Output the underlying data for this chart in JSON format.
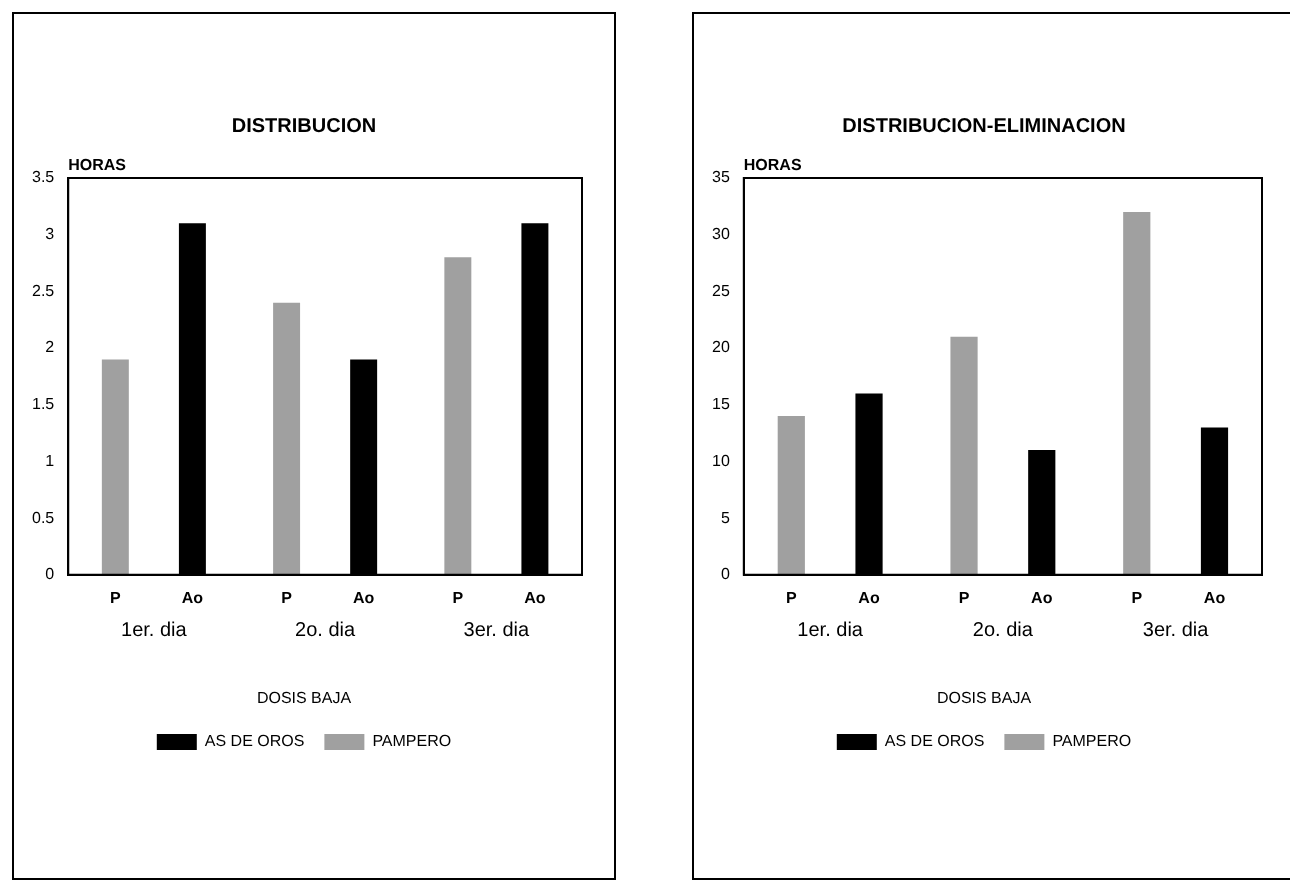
{
  "chart_data": [
    {
      "type": "bar",
      "title": "DISTRIBUCION",
      "ylabel": "HORAS",
      "legend_title": "DOSIS BAJA",
      "categories": [
        "1er. dia",
        "2o. dia",
        "3er. dia"
      ],
      "series": [
        {
          "name": "PAMPERO",
          "color": "#a0a0a0",
          "values": [
            1.9,
            2.4,
            2.8
          ]
        },
        {
          "name": "AS DE OROS",
          "color": "#000000",
          "values": [
            3.1,
            1.9,
            3.1
          ]
        }
      ],
      "ylim": [
        0,
        3.5
      ],
      "yticks": [
        0,
        0.5,
        1,
        1.5,
        2,
        2.5,
        3,
        3.5
      ],
      "grid": false,
      "legend": "bottom",
      "annotations": [
        "P",
        "Ao",
        "P",
        "Ao",
        "P",
        "Ao"
      ]
    },
    {
      "type": "bar",
      "title": "DISTRIBUCION-ELIMINACION",
      "ylabel": "HORAS",
      "legend_title": "DOSIS BAJA",
      "categories": [
        "1er. dia",
        "2o. dia",
        "3er. dia"
      ],
      "series": [
        {
          "name": "PAMPERO",
          "color": "#a0a0a0",
          "values": [
            14,
            21,
            32
          ]
        },
        {
          "name": "AS DE OROS",
          "color": "#000000",
          "values": [
            16,
            11,
            13
          ]
        }
      ],
      "ylim": [
        0,
        35
      ],
      "yticks": [
        0,
        5,
        10,
        15,
        20,
        25,
        30,
        35
      ],
      "grid": false,
      "legend": "bottom",
      "annotations": [
        "P",
        "Ao",
        "P",
        "Ao",
        "P",
        "Ao"
      ]
    }
  ]
}
